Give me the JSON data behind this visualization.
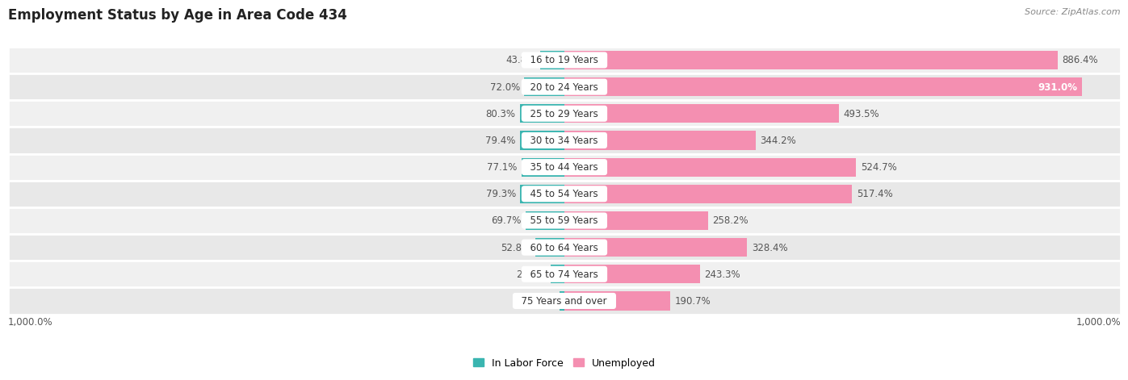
{
  "title": "Employment Status by Age in Area Code 434",
  "source": "Source: ZipAtlas.com",
  "categories": [
    "16 to 19 Years",
    "20 to 24 Years",
    "25 to 29 Years",
    "30 to 34 Years",
    "35 to 44 Years",
    "45 to 54 Years",
    "55 to 59 Years",
    "60 to 64 Years",
    "65 to 74 Years",
    "75 Years and over"
  ],
  "in_labor_force": [
    43.8,
    72.0,
    80.3,
    79.4,
    77.1,
    79.3,
    69.7,
    52.8,
    25.2,
    9.3
  ],
  "unemployed": [
    886.4,
    931.0,
    493.5,
    344.2,
    524.7,
    517.4,
    258.2,
    328.4,
    243.3,
    190.7
  ],
  "labor_color": "#3ab5b0",
  "unemployed_color": "#f48fb1",
  "row_bg_even": "#f0f0f0",
  "row_bg_odd": "#e8e8e8",
  "title_fontsize": 12,
  "label_fontsize": 8.5,
  "value_fontsize": 8.5,
  "axis_label_fontsize": 8.5,
  "xlabel_left": "1,000.0%",
  "xlabel_right": "1,000.0%",
  "xlim_left": -1000,
  "xlim_right": 1000,
  "legend_labor": "In Labor Force",
  "legend_unemployed": "Unemployed"
}
